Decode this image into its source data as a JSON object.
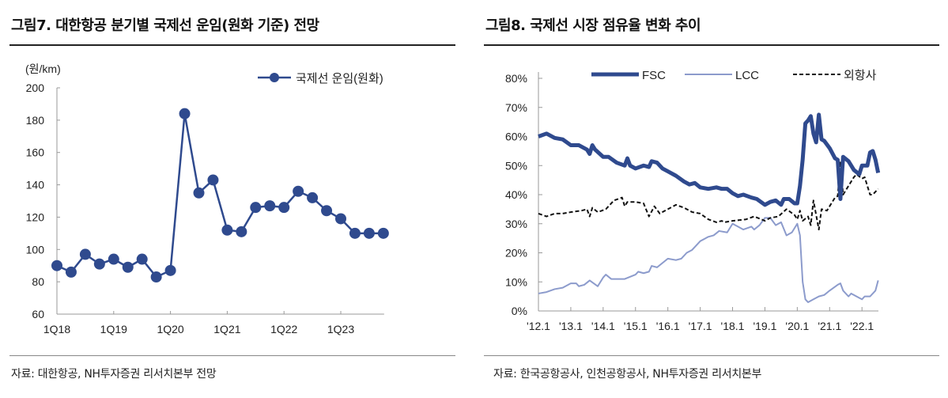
{
  "left": {
    "title": "그림7. 대한항공 분기별 국제선 운임(원화 기준) 전망",
    "source": "자료: 대한항공, NH투자증권 리서치본부 전망"
  },
  "right": {
    "title": "그림8. 국제선 시장 점유율 변화 추이",
    "source": "자료: 한국공항공사, 인천공항공사, NH투자증권 리서치본부"
  },
  "chart_data": [
    {
      "type": "line",
      "unit_label": "(원/km)",
      "categories": [
        "1Q18",
        "2Q18",
        "3Q18",
        "4Q18",
        "1Q19",
        "2Q19",
        "3Q19",
        "4Q19",
        "1Q20",
        "2Q20",
        "3Q20",
        "4Q20",
        "1Q21",
        "2Q21",
        "3Q21",
        "4Q21",
        "1Q22",
        "2Q22",
        "3Q22",
        "4Q22",
        "1Q23",
        "2Q23",
        "3Q23",
        "4Q23"
      ],
      "tick_labels": [
        "1Q18",
        "1Q19",
        "1Q20",
        "1Q21",
        "1Q22",
        "1Q23"
      ],
      "series": [
        {
          "name": "국제선 운임(원화)",
          "color": "#2f4a8e",
          "markers": true,
          "values": [
            90,
            86,
            97,
            91,
            94,
            89,
            94,
            83,
            87,
            184,
            135,
            143,
            112,
            111,
            126,
            127,
            126,
            136,
            132,
            124,
            119,
            110,
            110,
            110
          ]
        }
      ],
      "ylim": [
        60,
        200
      ],
      "yticks": [
        60,
        80,
        100,
        120,
        140,
        160,
        180,
        200
      ],
      "grid": false,
      "legend": "top-right"
    },
    {
      "type": "line",
      "xlim": [
        "2012.01",
        "2022.07"
      ],
      "tick_labels": [
        "'12.1",
        "'13.1",
        "'14.1",
        "'15.1",
        "'16.1",
        "'17.1",
        "'18.1",
        "'19.1",
        "'20.1",
        "'21.1",
        "'22.1"
      ],
      "ylim": [
        0,
        80
      ],
      "yticks": [
        "0%",
        "10%",
        "20%",
        "30%",
        "40%",
        "50%",
        "60%",
        "70%",
        "80%"
      ],
      "grid": false,
      "legend": "top",
      "series": [
        {
          "name": "FSC",
          "color": "#2f4a8e",
          "style": "solid-thick",
          "points": [
            [
              "2012.01",
              60
            ],
            [
              "2012.04",
              61
            ],
            [
              "2012.07",
              59.5
            ],
            [
              "2012.10",
              59
            ],
            [
              "2013.01",
              57
            ],
            [
              "2013.04",
              57
            ],
            [
              "2013.07",
              55.5
            ],
            [
              "2013.08",
              54
            ],
            [
              "2013.09",
              57
            ],
            [
              "2013.10",
              55.5
            ],
            [
              "2014.01",
              53
            ],
            [
              "2014.03",
              53
            ],
            [
              "2014.06",
              51
            ],
            [
              "2014.09",
              50
            ],
            [
              "2014.10",
              52.5
            ],
            [
              "2014.11",
              50
            ],
            [
              "2015.01",
              49
            ],
            [
              "2015.04",
              50
            ],
            [
              "2015.06",
              49.5
            ],
            [
              "2015.07",
              51.5
            ],
            [
              "2015.09",
              51
            ],
            [
              "2015.11",
              49
            ],
            [
              "2016.01",
              48
            ],
            [
              "2016.04",
              46.5
            ],
            [
              "2016.07",
              44.5
            ],
            [
              "2016.09",
              43.5
            ],
            [
              "2016.11",
              44
            ],
            [
              "2017.01",
              42.5
            ],
            [
              "2017.04",
              42
            ],
            [
              "2017.07",
              42.5
            ],
            [
              "2017.09",
              42
            ],
            [
              "2017.11",
              42
            ],
            [
              "2018.01",
              40.5
            ],
            [
              "2018.03",
              39.5
            ],
            [
              "2018.05",
              40
            ],
            [
              "2018.08",
              39
            ],
            [
              "2018.10",
              38.5
            ],
            [
              "2019.01",
              36.5
            ],
            [
              "2019.03",
              37.5
            ],
            [
              "2019.05",
              38
            ],
            [
              "2019.07",
              36.5
            ],
            [
              "2019.08",
              38.5
            ],
            [
              "2019.10",
              38.5
            ],
            [
              "2019.12",
              37
            ],
            [
              "2020.01",
              37
            ],
            [
              "2020.02",
              43
            ],
            [
              "2020.03",
              52
            ],
            [
              "2020.04",
              64.5
            ],
            [
              "2020.05",
              65.5
            ],
            [
              "2020.06",
              67
            ],
            [
              "2020.07",
              61
            ],
            [
              "2020.08",
              58
            ],
            [
              "2020.09",
              67.5
            ],
            [
              "2020.10",
              59
            ],
            [
              "2020.11",
              58.5
            ],
            [
              "2021.01",
              56
            ],
            [
              "2021.03",
              52.5
            ],
            [
              "2021.04",
              52
            ],
            [
              "2021.05",
              38.5
            ],
            [
              "2021.06",
              53
            ],
            [
              "2021.08",
              51.5
            ],
            [
              "2021.10",
              48.5
            ],
            [
              "2021.12",
              47
            ],
            [
              "2022.01",
              50
            ],
            [
              "2022.03",
              50
            ],
            [
              "2022.04",
              54.5
            ],
            [
              "2022.05",
              55
            ],
            [
              "2022.06",
              52
            ],
            [
              "2022.07",
              47.5
            ]
          ]
        },
        {
          "name": "LCC",
          "color": "#8c9bcc",
          "style": "solid-thin",
          "points": [
            [
              "2012.01",
              6
            ],
            [
              "2012.04",
              6.5
            ],
            [
              "2012.07",
              7.5
            ],
            [
              "2012.10",
              8
            ],
            [
              "2013.01",
              9.5
            ],
            [
              "2013.03",
              9.5
            ],
            [
              "2013.04",
              8.5
            ],
            [
              "2013.06",
              9
            ],
            [
              "2013.08",
              10.5
            ],
            [
              "2013.11",
              8.5
            ],
            [
              "2014.01",
              11.5
            ],
            [
              "2014.02",
              12.5
            ],
            [
              "2014.04",
              11
            ],
            [
              "2014.09",
              11
            ],
            [
              "2015.01",
              12.5
            ],
            [
              "2015.02",
              13.5
            ],
            [
              "2015.04",
              13
            ],
            [
              "2015.06",
              13.5
            ],
            [
              "2015.07",
              15.5
            ],
            [
              "2015.09",
              15
            ],
            [
              "2015.11",
              16.5
            ],
            [
              "2016.01",
              18
            ],
            [
              "2016.04",
              17.5
            ],
            [
              "2016.06",
              18
            ],
            [
              "2016.08",
              20
            ],
            [
              "2016.10",
              21
            ],
            [
              "2017.01",
              24
            ],
            [
              "2017.04",
              25.5
            ],
            [
              "2017.06",
              26
            ],
            [
              "2017.08",
              27.5
            ],
            [
              "2017.11",
              27
            ],
            [
              "2018.01",
              30
            ],
            [
              "2018.03",
              29
            ],
            [
              "2018.05",
              28
            ],
            [
              "2018.08",
              29
            ],
            [
              "2018.09",
              28
            ],
            [
              "2018.11",
              29.5
            ],
            [
              "2019.01",
              32
            ],
            [
              "2019.03",
              32
            ],
            [
              "2019.05",
              29.5
            ],
            [
              "2019.07",
              30.5
            ],
            [
              "2019.09",
              26
            ],
            [
              "2019.11",
              27
            ],
            [
              "2020.01",
              30
            ],
            [
              "2020.02",
              26
            ],
            [
              "2020.03",
              10
            ],
            [
              "2020.04",
              4
            ],
            [
              "2020.05",
              3
            ],
            [
              "2020.07",
              4
            ],
            [
              "2020.09",
              5
            ],
            [
              "2020.11",
              5.5
            ],
            [
              "2021.01",
              7
            ],
            [
              "2021.04",
              9
            ],
            [
              "2021.05",
              9.5
            ],
            [
              "2021.06",
              7
            ],
            [
              "2021.08",
              5
            ],
            [
              "2021.09",
              6
            ],
            [
              "2021.12",
              4.5
            ],
            [
              "2022.01",
              4
            ],
            [
              "2022.02",
              5
            ],
            [
              "2022.04",
              5
            ],
            [
              "2022.06",
              7
            ],
            [
              "2022.07",
              10.5
            ]
          ]
        },
        {
          "name": "외항사",
          "color": "#111111",
          "style": "dashed",
          "points": [
            [
              "2012.01",
              33.5
            ],
            [
              "2012.04",
              32.5
            ],
            [
              "2012.07",
              33.5
            ],
            [
              "2012.10",
              33.5
            ],
            [
              "2013.01",
              34
            ],
            [
              "2013.05",
              34.5
            ],
            [
              "2013.07",
              35
            ],
            [
              "2013.08",
              32.5
            ],
            [
              "2013.09",
              35.5
            ],
            [
              "2013.11",
              34
            ],
            [
              "2014.02",
              35
            ],
            [
              "2014.05",
              38
            ],
            [
              "2014.08",
              39
            ],
            [
              "2014.09",
              36
            ],
            [
              "2014.10",
              37.5
            ],
            [
              "2015.01",
              37.5
            ],
            [
              "2015.04",
              37
            ],
            [
              "2015.06",
              32.5
            ],
            [
              "2015.08",
              36
            ],
            [
              "2015.10",
              33.5
            ],
            [
              "2016.01",
              35
            ],
            [
              "2016.04",
              36.5
            ],
            [
              "2016.07",
              35.5
            ],
            [
              "2016.10",
              34
            ],
            [
              "2017.01",
              33.5
            ],
            [
              "2017.04",
              31.5
            ],
            [
              "2017.07",
              30.5
            ],
            [
              "2017.09",
              31
            ],
            [
              "2017.10",
              30.5
            ],
            [
              "2018.01",
              31
            ],
            [
              "2018.06",
              31.5
            ],
            [
              "2018.09",
              32.5
            ],
            [
              "2019.01",
              31
            ],
            [
              "2019.03",
              32
            ],
            [
              "2019.06",
              32.5
            ],
            [
              "2019.09",
              35
            ],
            [
              "2019.12",
              33
            ],
            [
              "2020.01",
              31.5
            ],
            [
              "2020.02",
              34.5
            ],
            [
              "2020.03",
              31
            ],
            [
              "2020.05",
              32.5
            ],
            [
              "2020.06",
              29.5
            ],
            [
              "2020.07",
              38
            ],
            [
              "2020.09",
              28
            ],
            [
              "2020.10",
              35
            ],
            [
              "2020.12",
              34.5
            ],
            [
              "2021.01",
              36
            ],
            [
              "2021.03",
              39
            ],
            [
              "2021.04",
              39.5
            ],
            [
              "2021.05",
              51.5
            ],
            [
              "2021.06",
              40
            ],
            [
              "2021.08",
              43
            ],
            [
              "2021.10",
              46
            ],
            [
              "2021.11",
              47
            ],
            [
              "2022.01",
              45.5
            ],
            [
              "2022.02",
              46
            ],
            [
              "2022.04",
              40
            ],
            [
              "2022.05",
              40
            ],
            [
              "2022.07",
              42
            ]
          ]
        }
      ]
    }
  ]
}
